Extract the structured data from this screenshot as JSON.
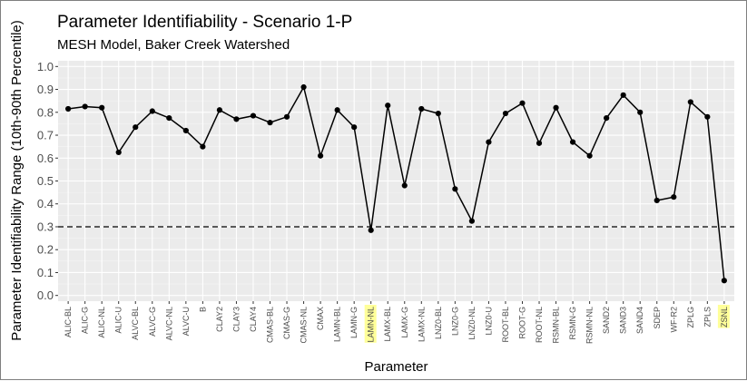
{
  "chart_data": {
    "type": "line",
    "title": "Parameter Identifiability - Scenario 1-P",
    "subtitle": "MESH Model, Baker Creek Watershed",
    "xlabel": "Parameter",
    "ylabel": "Parameter Identifiability Range (10th-90th Percentile)",
    "ylim": [
      0,
      1.0
    ],
    "yticks": [
      "0.0",
      "0.1",
      "0.2",
      "0.3",
      "0.4",
      "0.5",
      "0.6",
      "0.7",
      "0.8",
      "0.9",
      "1.0"
    ],
    "grid": true,
    "threshold": 0.3,
    "highlight_color": "#ffff99",
    "line_color": "#000000",
    "highlighted_categories": [
      "LAMN-NL",
      "ZSNL"
    ],
    "categories": [
      "ALIC-BL",
      "ALIC-G",
      "ALIC-NL",
      "ALIC-U",
      "ALVC-BL",
      "ALVC-G",
      "ALVC-NL",
      "ALVC-U",
      "B",
      "CLAY2",
      "CLAY3",
      "CLAY4",
      "CMAS-BL",
      "CMAS-G",
      "CMAS-NL",
      "CMAX",
      "LAMN-BL",
      "LAMN-G",
      "LAMN-NL",
      "LAMX-BL",
      "LAMX-G",
      "LAMX-NL",
      "LNZ0-BL",
      "LNZ0-G",
      "LNZ0-NL",
      "LNZ0-U",
      "ROOT-BL",
      "ROOT-G",
      "ROOT-NL",
      "RSMN-BL",
      "RSMN-G",
      "RSMN-NL",
      "SAND2",
      "SAND3",
      "SAND4",
      "SDEP",
      "WF-R2",
      "ZPLG",
      "ZPLS",
      "ZSNL"
    ],
    "values": [
      0.815,
      0.825,
      0.82,
      0.625,
      0.735,
      0.805,
      0.775,
      0.72,
      0.65,
      0.81,
      0.77,
      0.785,
      0.755,
      0.78,
      0.91,
      0.61,
      0.81,
      0.735,
      0.285,
      0.83,
      0.48,
      0.815,
      0.795,
      0.465,
      0.325,
      0.67,
      0.795,
      0.84,
      0.665,
      0.82,
      0.67,
      0.61,
      0.775,
      0.875,
      0.8,
      0.415,
      0.43,
      0.845,
      0.78,
      0.065
    ]
  }
}
